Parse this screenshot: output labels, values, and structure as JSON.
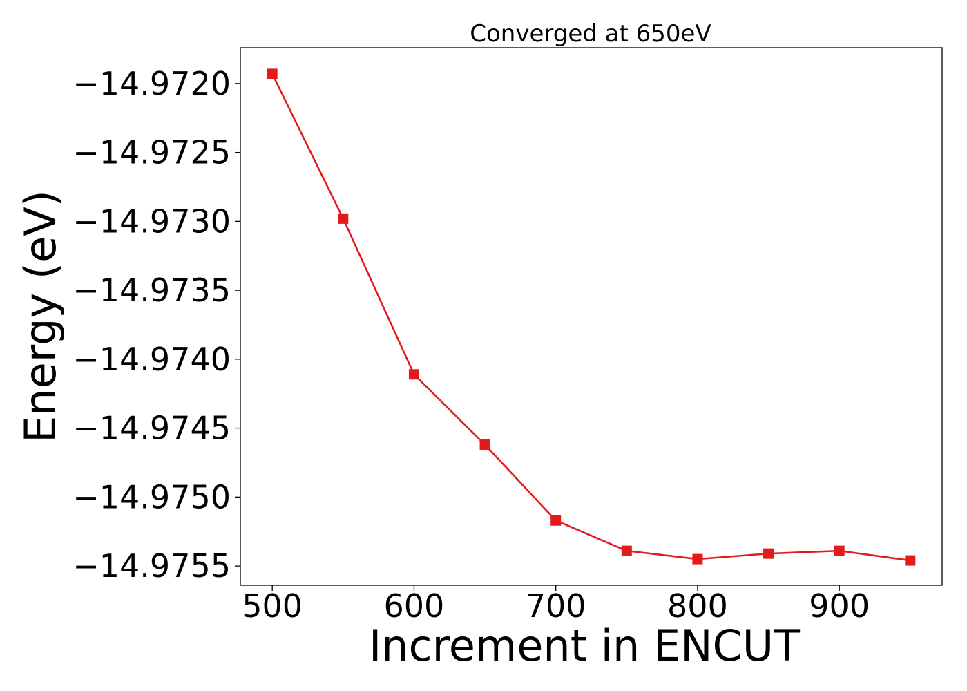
{
  "chart_data": {
    "type": "line",
    "title": "Converged at 650eV",
    "xlabel": "Increment in ENCUT",
    "ylabel": "Energy (eV)",
    "x": [
      500,
      550,
      600,
      650,
      700,
      750,
      800,
      850,
      900,
      950
    ],
    "series": [
      {
        "values": [
          -14.97193,
          -14.97298,
          -14.97411,
          -14.97462,
          -14.97517,
          -14.97539,
          -14.97545,
          -14.97541,
          -14.97539,
          -14.97546
        ],
        "color": "#e31a1c",
        "marker": "square"
      }
    ],
    "xticks": [
      500,
      600,
      700,
      800,
      900
    ],
    "xtick_labels": [
      "500",
      "600",
      "700",
      "800",
      "900"
    ],
    "yticks": [
      -14.972,
      -14.9725,
      -14.973,
      -14.9735,
      -14.974,
      -14.9745,
      -14.975,
      -14.9755
    ],
    "ytick_labels": [
      "−14.9720",
      "−14.9725",
      "−14.9730",
      "−14.9735",
      "−14.9740",
      "−14.9745",
      "−14.9750",
      "−14.9755"
    ],
    "xlim": [
      477.5,
      972.5
    ],
    "ylim": [
      -14.97564,
      -14.97174
    ],
    "grid": false,
    "legend": false
  }
}
